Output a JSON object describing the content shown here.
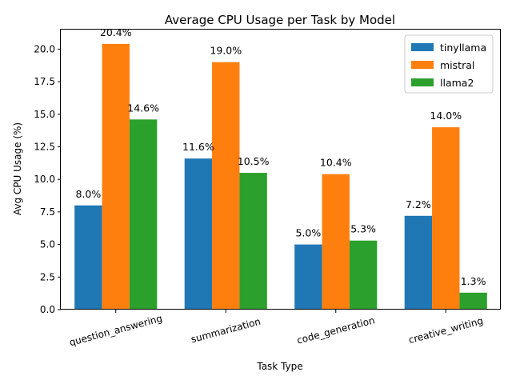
{
  "chart_data": {
    "type": "bar",
    "title": "Average CPU Usage per Task by Model",
    "xlabel": "Task Type",
    "ylabel": "Avg CPU Usage (%)",
    "categories": [
      "question_answering",
      "summarization",
      "code_generation",
      "creative_writing"
    ],
    "series": [
      {
        "name": "tinyllama",
        "color": "#1f77b4",
        "values": [
          8.0,
          11.6,
          5.0,
          7.2
        ],
        "labels": [
          "8.0%",
          "11.6%",
          "5.0%",
          "7.2%"
        ]
      },
      {
        "name": "mistral",
        "color": "#ff7f0e",
        "values": [
          20.4,
          19.0,
          10.4,
          14.0
        ],
        "labels": [
          "20.4%",
          "19.0%",
          "10.4%",
          "14.0%"
        ]
      },
      {
        "name": "llama2",
        "color": "#2ca02c",
        "values": [
          14.6,
          10.5,
          5.3,
          1.3
        ],
        "labels": [
          "14.6%",
          "10.5%",
          "5.3%",
          "1.3%"
        ]
      }
    ],
    "ylim": [
      0,
      21.5
    ],
    "yticks": [
      0.0,
      2.5,
      5.0,
      7.5,
      10.0,
      12.5,
      15.0,
      17.5,
      20.0
    ],
    "ytick_labels": [
      "0.0",
      "2.5",
      "5.0",
      "7.5",
      "10.0",
      "12.5",
      "15.0",
      "17.5",
      "20.0"
    ],
    "grid": false,
    "legend_position": "top-right"
  }
}
